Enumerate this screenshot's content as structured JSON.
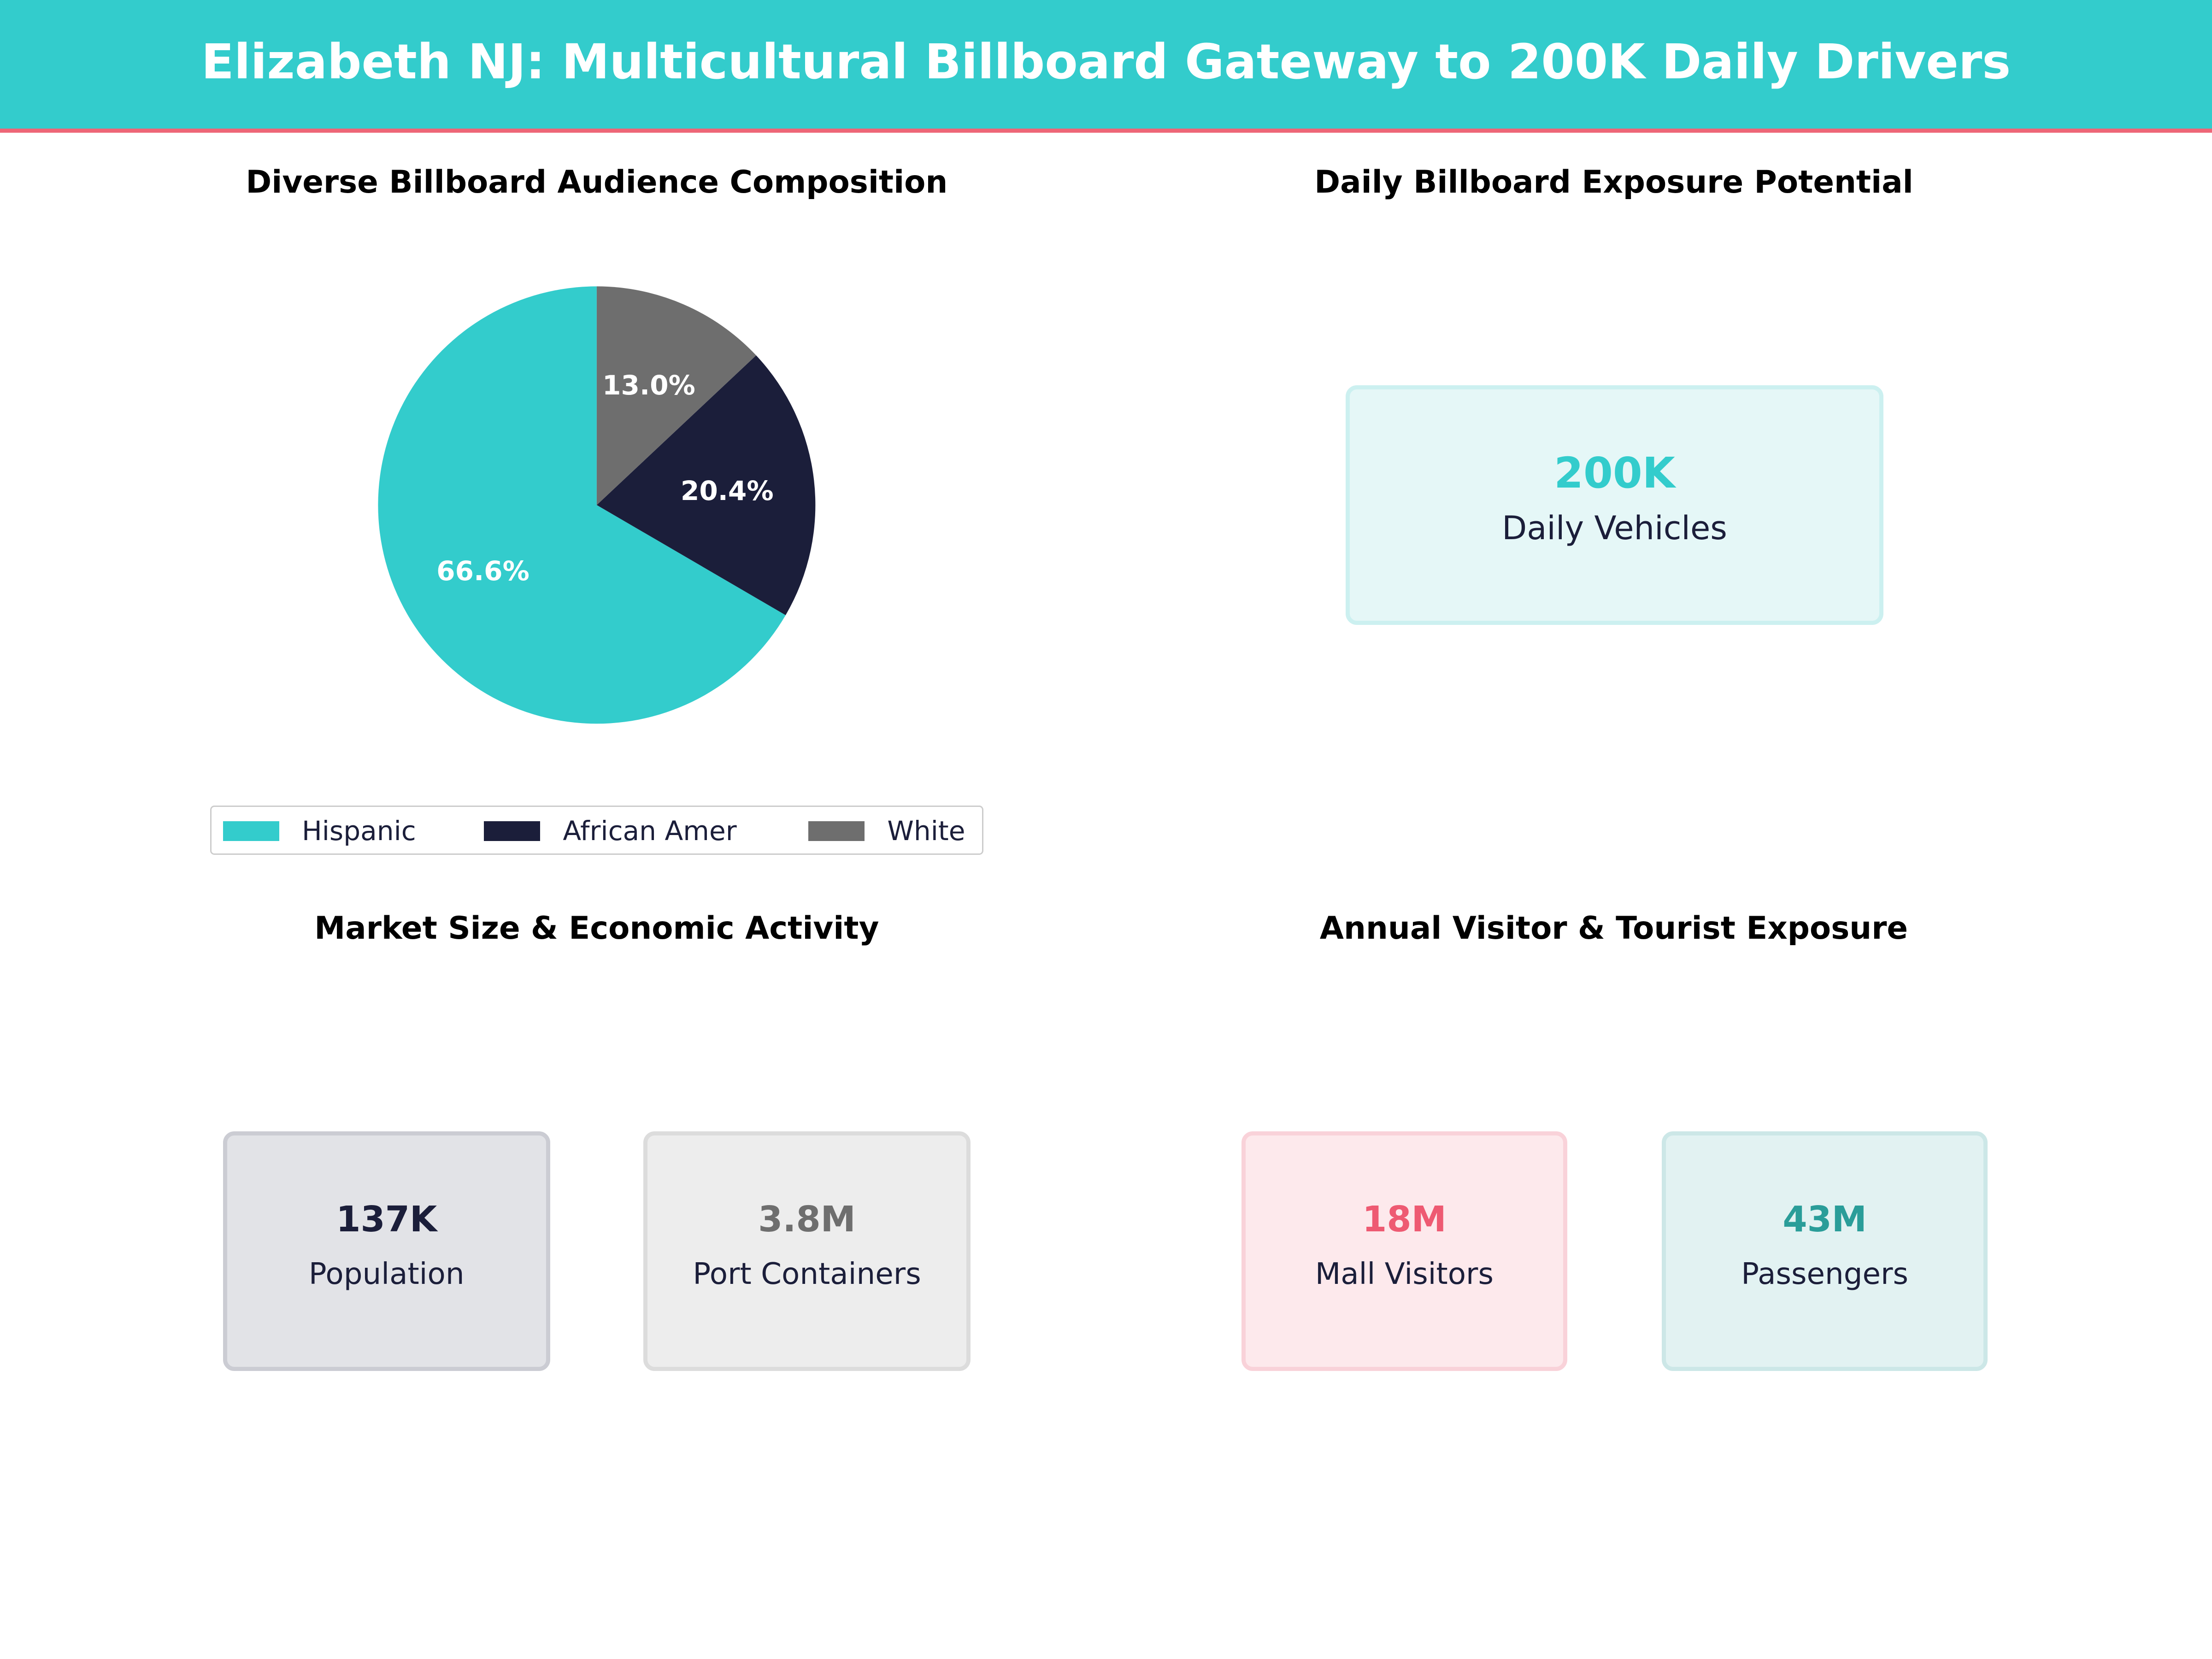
{
  "header": {
    "title": "Elizabeth NJ: Multicultural Billboard Gateway to 200K Daily Drivers"
  },
  "colors": {
    "header": "#33cccc",
    "accent_line": "#ee6677",
    "hispanic": "#33cccc",
    "african_amer": "#1b1e3a",
    "white": "#6e6e6e"
  },
  "panels": {
    "audience": {
      "title": "Diverse Billboard Audience Composition"
    },
    "exposure": {
      "title": "Daily Billboard Exposure Potential",
      "card": {
        "value": "200K",
        "label": "Daily Vehicles"
      }
    },
    "market": {
      "title": "Market Size & Economic Activity",
      "cards": [
        {
          "value": "137K",
          "label": "Population"
        },
        {
          "value": "3.8M",
          "label": "Port Containers"
        }
      ]
    },
    "visitors": {
      "title": "Annual Visitor & Tourist Exposure",
      "cards": [
        {
          "value": "18M",
          "label": "Mall Visitors"
        },
        {
          "value": "43M",
          "label": "Passengers"
        }
      ]
    }
  },
  "chart_data": {
    "type": "pie",
    "title": "Diverse Billboard Audience Composition",
    "categories": [
      "Hispanic",
      "African Amer",
      "White"
    ],
    "values": [
      66.6,
      20.4,
      13.0
    ],
    "labels": [
      "66.6%",
      "20.4%",
      "13.0%"
    ],
    "colors": [
      "#33cccc",
      "#1b1e3a",
      "#6e6e6e"
    ],
    "start_angle": 90,
    "direction": "counterclockwise",
    "legend": "bottom"
  }
}
